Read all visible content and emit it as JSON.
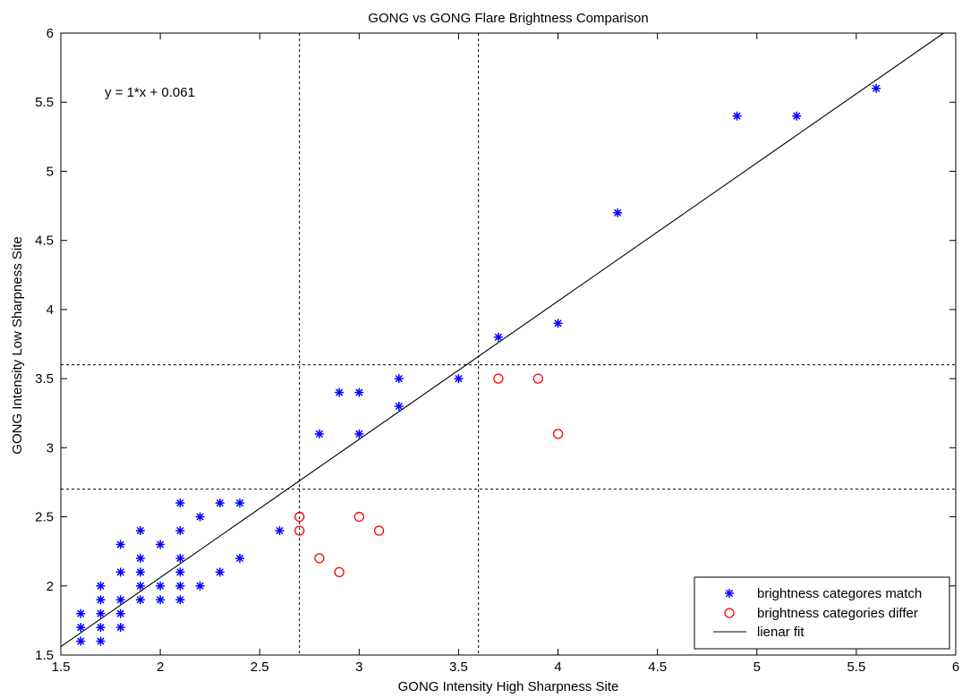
{
  "chart_data": {
    "type": "scatter",
    "title": "GONG vs GONG Flare Brightness Comparison",
    "xlabel": "GONG Intensity High Sharpness Site",
    "ylabel": "GONG Intensity Low Sharpness Site",
    "xlim": [
      1.5,
      6
    ],
    "ylim": [
      1.5,
      6
    ],
    "xticks": [
      1.5,
      2,
      2.5,
      3,
      3.5,
      4,
      4.5,
      5,
      5.5,
      6
    ],
    "yticks": [
      1.5,
      2,
      2.5,
      3,
      3.5,
      4,
      4.5,
      5,
      5.5,
      6
    ],
    "xtick_labels": [
      "1.5",
      "2",
      "2.5",
      "3",
      "3.5",
      "4",
      "4.5",
      "5",
      "5.5",
      "6"
    ],
    "ytick_labels": [
      "1.5",
      "2",
      "2.5",
      "3",
      "3.5",
      "4",
      "4.5",
      "5",
      "5.5",
      "6"
    ],
    "grid": false,
    "legend_position": "bottom-right",
    "annotation": "y = 1*x + 0.061",
    "threshold_lines": {
      "vertical": [
        2.7,
        3.6
      ],
      "horizontal": [
        2.7,
        3.6
      ]
    },
    "series": [
      {
        "name": "brightness categores match",
        "marker": "asterisk",
        "color": "#0000ff",
        "points": [
          [
            1.6,
            1.6
          ],
          [
            1.6,
            1.7
          ],
          [
            1.6,
            1.8
          ],
          [
            1.7,
            1.6
          ],
          [
            1.7,
            1.7
          ],
          [
            1.7,
            1.8
          ],
          [
            1.7,
            1.9
          ],
          [
            1.7,
            2.0
          ],
          [
            1.8,
            1.7
          ],
          [
            1.8,
            1.8
          ],
          [
            1.8,
            1.9
          ],
          [
            1.8,
            2.1
          ],
          [
            1.8,
            2.3
          ],
          [
            1.9,
            1.9
          ],
          [
            1.9,
            2.0
          ],
          [
            1.9,
            2.1
          ],
          [
            1.9,
            2.2
          ],
          [
            1.9,
            2.4
          ],
          [
            2.0,
            1.9
          ],
          [
            2.0,
            2.0
          ],
          [
            2.0,
            2.3
          ],
          [
            2.1,
            1.9
          ],
          [
            2.1,
            2.0
          ],
          [
            2.1,
            2.1
          ],
          [
            2.1,
            2.2
          ],
          [
            2.1,
            2.4
          ],
          [
            2.1,
            2.6
          ],
          [
            2.2,
            2.0
          ],
          [
            2.2,
            2.5
          ],
          [
            2.3,
            2.1
          ],
          [
            2.3,
            2.6
          ],
          [
            2.4,
            2.2
          ],
          [
            2.4,
            2.6
          ],
          [
            2.6,
            2.4
          ],
          [
            2.8,
            3.1
          ],
          [
            2.9,
            3.4
          ],
          [
            3.0,
            3.1
          ],
          [
            3.0,
            3.4
          ],
          [
            3.2,
            3.3
          ],
          [
            3.2,
            3.5
          ],
          [
            3.5,
            3.5
          ],
          [
            3.7,
            3.8
          ],
          [
            4.0,
            3.9
          ],
          [
            4.3,
            4.7
          ],
          [
            4.9,
            5.4
          ],
          [
            5.2,
            5.4
          ],
          [
            5.6,
            5.6
          ]
        ]
      },
      {
        "name": "brightness categories differ",
        "marker": "circle",
        "color": "#ff0000",
        "points": [
          [
            2.7,
            2.4
          ],
          [
            2.7,
            2.5
          ],
          [
            2.8,
            2.2
          ],
          [
            2.9,
            2.1
          ],
          [
            3.0,
            2.5
          ],
          [
            3.1,
            2.4
          ],
          [
            3.7,
            3.5
          ],
          [
            3.9,
            3.5
          ],
          [
            4.0,
            3.1
          ]
        ]
      }
    ],
    "fit_line": {
      "name": "lienar fit",
      "color": "#000000",
      "slope": 1,
      "intercept": 0.061
    }
  }
}
